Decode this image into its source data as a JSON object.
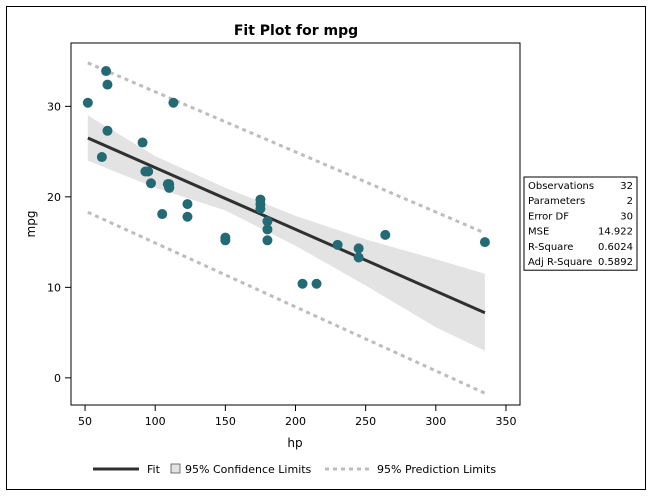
{
  "chart_data": {
    "type": "scatter",
    "title": "Fit Plot for mpg",
    "xlabel": "hp",
    "ylabel": "mpg",
    "xlim": [
      40,
      360
    ],
    "ylim": [
      -3,
      37
    ],
    "x_ticks": [
      50,
      100,
      150,
      200,
      250,
      300,
      350
    ],
    "y_ticks": [
      0,
      10,
      20,
      30
    ],
    "grid": false,
    "legend_position": "bottom",
    "points": [
      [
        52,
        30.4
      ],
      [
        62,
        24.4
      ],
      [
        65,
        33.9
      ],
      [
        66,
        32.4
      ],
      [
        66,
        27.3
      ],
      [
        91,
        26.0
      ],
      [
        93,
        22.8
      ],
      [
        95,
        22.8
      ],
      [
        97,
        21.5
      ],
      [
        105,
        18.1
      ],
      [
        109,
        21.4
      ],
      [
        110,
        21.0
      ],
      [
        110,
        21.0
      ],
      [
        110,
        21.4
      ],
      [
        113,
        30.4
      ],
      [
        123,
        17.8
      ],
      [
        123,
        19.2
      ],
      [
        150,
        15.2
      ],
      [
        150,
        15.5
      ],
      [
        175,
        18.7
      ],
      [
        175,
        19.2
      ],
      [
        175,
        19.7
      ],
      [
        180,
        16.4
      ],
      [
        180,
        17.3
      ],
      [
        180,
        15.2
      ],
      [
        205,
        10.4
      ],
      [
        215,
        10.4
      ],
      [
        230,
        14.7
      ],
      [
        245,
        13.3
      ],
      [
        245,
        14.3
      ],
      [
        264,
        15.8
      ],
      [
        335,
        15.0
      ]
    ],
    "fit_line": {
      "x": [
        52,
        335
      ],
      "y": [
        26.5,
        7.2
      ]
    },
    "confidence_band": {
      "x": [
        52,
        100,
        150,
        200,
        250,
        300,
        335
      ],
      "upper": [
        29.0,
        24.5,
        21.0,
        17.9,
        15.3,
        13.1,
        11.5
      ],
      "lower": [
        24.0,
        21.0,
        18.5,
        14.6,
        10.2,
        5.6,
        3.0
      ]
    },
    "prediction_limits": {
      "x": [
        52,
        335
      ],
      "upper": [
        34.8,
        16.0
      ],
      "lower": [
        18.3,
        -1.7
      ]
    },
    "legend": [
      {
        "label": "Fit",
        "kind": "line"
      },
      {
        "label": "95% Confidence Limits",
        "kind": "band"
      },
      {
        "label": "95% Prediction Limits",
        "kind": "dashed"
      }
    ],
    "stats_table": [
      {
        "label": "Observations",
        "value": "32"
      },
      {
        "label": "Parameters",
        "value": "2"
      },
      {
        "label": "Error DF",
        "value": "30"
      },
      {
        "label": "MSE",
        "value": "14.922"
      },
      {
        "label": "R-Square",
        "value": "0.6024"
      },
      {
        "label": "Adj R-Square",
        "value": "0.5892"
      }
    ],
    "colors": {
      "point": "#236a75",
      "fit": "#303030",
      "band": "#e3e3e3",
      "prediction": "#bdbdbd",
      "axis": "#000000"
    }
  }
}
